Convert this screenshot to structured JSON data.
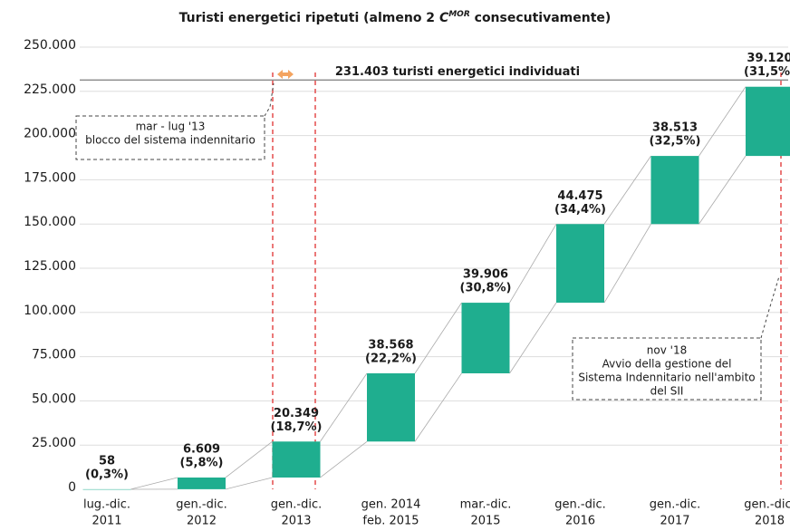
{
  "chart_data": {
    "type": "waterfall",
    "title": {
      "pre": "Turisti energetici ripetuti (almeno 2 ",
      "c": "C",
      "sup": "MOR",
      "post": " consecutivamente)"
    },
    "categories": [
      [
        "lug.-dic.",
        "2011"
      ],
      [
        "gen.-dic.",
        "2012"
      ],
      [
        "gen.-dic.",
        "2013"
      ],
      [
        "gen. 2014",
        "feb. 2015"
      ],
      [
        "mar.-dic.",
        "2015"
      ],
      [
        "gen.-dic.",
        "2016"
      ],
      [
        "gen.-dic.",
        "2017"
      ],
      [
        "gen.-dic.",
        "2018"
      ]
    ],
    "values": [
      58,
      6609,
      20349,
      38568,
      39906,
      44475,
      38513,
      39120
    ],
    "value_labels": [
      "58",
      "6.609",
      "20.349",
      "38.568",
      "39.906",
      "44.475",
      "38.513",
      "39.120"
    ],
    "percent_labels": [
      "(0,3%)",
      "(5,8%)",
      "(18,7%)",
      "(22,2%)",
      "(30,8%)",
      "(34,4%)",
      "(32,5%)",
      "(31,5%)"
    ],
    "color": "#1fae8f",
    "ylim": [
      0,
      250000
    ],
    "yticks": [
      0,
      {
        "value": 25000,
        "label": "25.000"
      },
      {
        "value": 50000,
        "label": "50.000"
      },
      {
        "value": 75000,
        "label": "75.000"
      },
      {
        "value": 100000,
        "label": "100.000"
      },
      {
        "value": 125000,
        "label": "125.000"
      },
      {
        "value": 150000,
        "label": "150.000"
      },
      {
        "value": 175000,
        "label": "175.000"
      },
      {
        "value": 200000,
        "label": "200.000"
      },
      {
        "value": 225000,
        "label": "225.000"
      },
      {
        "value": 250000,
        "label": "250.000"
      }
    ],
    "grid": true,
    "total_line": {
      "value": 231403,
      "label": "231.403 turisti energetici individuati"
    },
    "annotations": [
      {
        "lines": [
          "mar - lug '13",
          "blocco del sistema indennitario"
        ]
      },
      {
        "lines": [
          "nov '18",
          "Avvio della gestione del",
          "Sistema Indennitario nell'ambito",
          "del SII"
        ]
      }
    ]
  }
}
